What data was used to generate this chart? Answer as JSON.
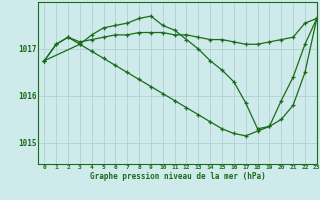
{
  "title": "Graphe pression niveau de la mer (hPa)",
  "bg_color": "#ceeaea",
  "line_color": "#1a6b1a",
  "grid_color": "#a8cccc",
  "xlim": [
    -0.5,
    23
  ],
  "ylim": [
    1014.55,
    1018.0
  ],
  "yticks": [
    1015,
    1016,
    1017
  ],
  "xticks": [
    0,
    1,
    2,
    3,
    4,
    5,
    6,
    7,
    8,
    9,
    10,
    11,
    12,
    13,
    14,
    15,
    16,
    17,
    18,
    19,
    20,
    21,
    22,
    23
  ],
  "series": [
    {
      "x": [
        0,
        1,
        2,
        3,
        4,
        5,
        6,
        7,
        8,
        9,
        10,
        11,
        12,
        13,
        14,
        15,
        16,
        17,
        18,
        19,
        20,
        21,
        22,
        23
      ],
      "y": [
        1016.75,
        1017.1,
        1017.25,
        1017.15,
        1017.2,
        1017.25,
        1017.3,
        1017.3,
        1017.35,
        1017.35,
        1017.35,
        1017.3,
        1017.3,
        1017.25,
        1017.2,
        1017.2,
        1017.15,
        1017.1,
        1017.1,
        1017.15,
        1017.2,
        1017.25,
        1017.55,
        1017.65
      ]
    },
    {
      "x": [
        0,
        1,
        2,
        3,
        4,
        5,
        6,
        7,
        8,
        9,
        10,
        11,
        12,
        13,
        14,
        15,
        16,
        17,
        18,
        19,
        20,
        21,
        22,
        23
      ],
      "y": [
        1016.75,
        1017.1,
        1017.25,
        1017.1,
        1017.3,
        1017.45,
        1017.5,
        1017.55,
        1017.65,
        1017.7,
        1017.5,
        1017.4,
        1017.2,
        1017.0,
        1016.75,
        1016.55,
        1016.3,
        1015.85,
        1015.3,
        1015.35,
        1015.9,
        1016.4,
        1017.1,
        1017.65
      ]
    },
    {
      "x": [
        0,
        3,
        4,
        5,
        6,
        7,
        8,
        9,
        10,
        11,
        12,
        13,
        14,
        15,
        16,
        17,
        18,
        19,
        20,
        21,
        22,
        23
      ],
      "y": [
        1016.75,
        1017.1,
        1016.95,
        1016.8,
        1016.65,
        1016.5,
        1016.35,
        1016.2,
        1016.05,
        1015.9,
        1015.75,
        1015.6,
        1015.45,
        1015.3,
        1015.2,
        1015.15,
        1015.25,
        1015.35,
        1015.5,
        1015.8,
        1016.5,
        1017.65
      ]
    }
  ]
}
